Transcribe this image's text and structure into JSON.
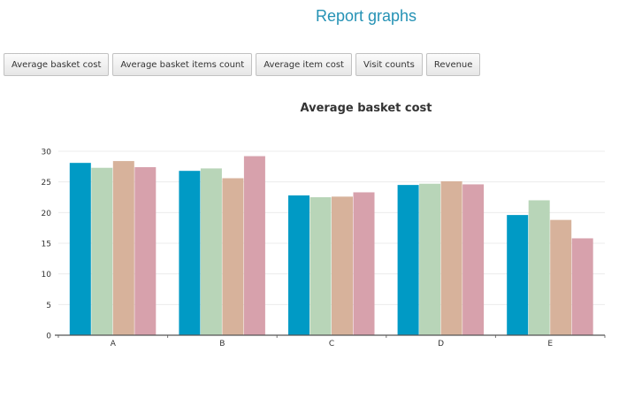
{
  "page": {
    "title": "Report graphs"
  },
  "toolbar": {
    "buttons": [
      {
        "label": "Average basket cost"
      },
      {
        "label": "Average basket items count"
      },
      {
        "label": "Average item cost"
      },
      {
        "label": "Visit counts"
      },
      {
        "label": "Revenue"
      }
    ]
  },
  "chart_data": {
    "type": "bar",
    "title": "Average basket cost",
    "xlabel": "",
    "ylabel": "",
    "categories": [
      "A",
      "B",
      "C",
      "D",
      "E"
    ],
    "ylim": [
      0,
      30
    ],
    "yticks": [
      0,
      5,
      10,
      15,
      20,
      25,
      30
    ],
    "grid": true,
    "legend": "none",
    "colors": [
      "#009ac5",
      "#b8d5b8",
      "#d7b29b",
      "#d7a1ac"
    ],
    "series": [
      {
        "values": [
          28.1,
          26.8,
          22.8,
          24.5,
          19.6
        ]
      },
      {
        "values": [
          27.3,
          27.2,
          22.5,
          24.7,
          22.0
        ]
      },
      {
        "values": [
          28.4,
          25.6,
          22.6,
          25.1,
          18.8
        ]
      },
      {
        "values": [
          27.4,
          29.2,
          23.3,
          24.6,
          15.8
        ]
      }
    ]
  }
}
